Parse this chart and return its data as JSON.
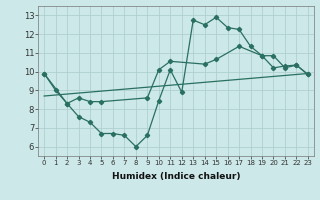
{
  "xlabel": "Humidex (Indice chaleur)",
  "xlim": [
    -0.5,
    23.5
  ],
  "ylim": [
    5.5,
    13.5
  ],
  "xticks": [
    0,
    1,
    2,
    3,
    4,
    5,
    6,
    7,
    8,
    9,
    10,
    11,
    12,
    13,
    14,
    15,
    16,
    17,
    18,
    19,
    20,
    21,
    22,
    23
  ],
  "yticks": [
    6,
    7,
    8,
    9,
    10,
    11,
    12,
    13
  ],
  "bg_color": "#cce8e8",
  "grid_color": "#b0d0d0",
  "line_color": "#2a7060",
  "line1": {
    "x": [
      0,
      1,
      2,
      3,
      4,
      5,
      6,
      7,
      8,
      9,
      10,
      11,
      12,
      13,
      14,
      15,
      16,
      17,
      18,
      19,
      20,
      21,
      22,
      23
    ],
    "y": [
      9.9,
      9.0,
      8.3,
      7.6,
      7.3,
      6.7,
      6.7,
      6.6,
      6.0,
      6.6,
      8.45,
      10.1,
      8.9,
      12.75,
      12.5,
      12.9,
      12.35,
      12.25,
      11.35,
      10.85,
      10.2,
      10.3,
      10.35,
      9.85
    ]
  },
  "line2": {
    "x": [
      0,
      2,
      3,
      4,
      5,
      9,
      10,
      11,
      14,
      15,
      17,
      19,
      20,
      21,
      22,
      23
    ],
    "y": [
      9.9,
      8.3,
      8.6,
      8.4,
      8.4,
      8.6,
      10.1,
      10.55,
      10.4,
      10.65,
      11.35,
      10.85,
      10.85,
      10.2,
      10.35,
      9.85
    ]
  },
  "line3": {
    "x": [
      0,
      23
    ],
    "y": [
      8.7,
      9.9
    ]
  }
}
